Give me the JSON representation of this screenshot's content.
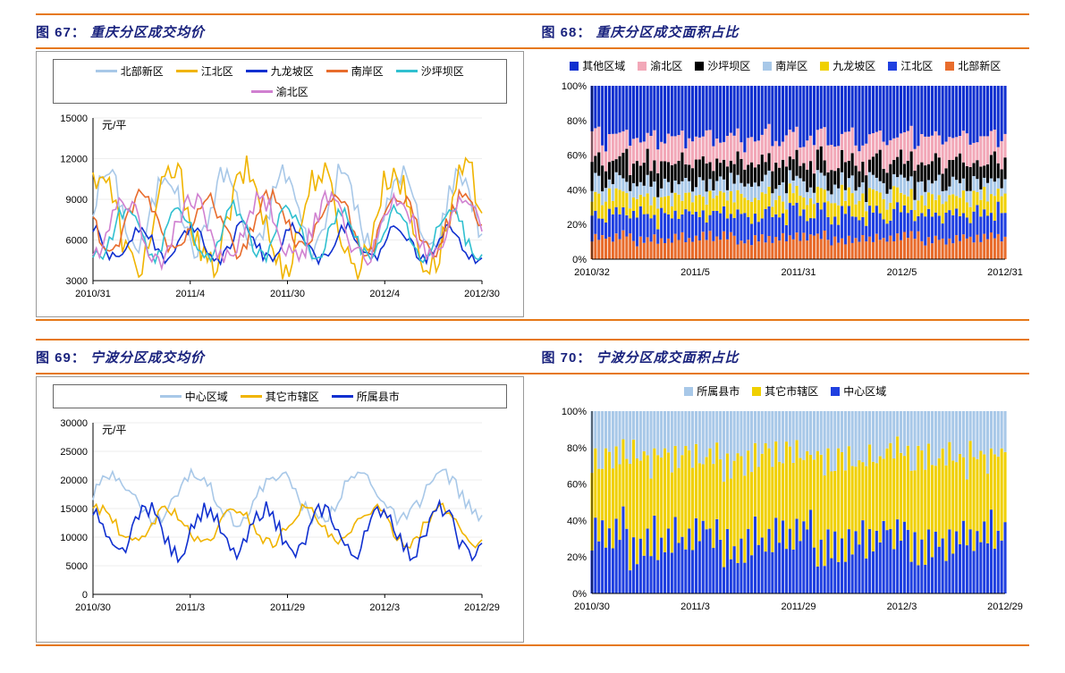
{
  "colors": {
    "orange_rule": "#e67817",
    "title": "#1a237e",
    "axis": "#000000",
    "grid": "#dddddd",
    "series": {
      "beibu": "#a8c8e8",
      "jiangbei": "#f0b400",
      "jiulongpo": "#1030d0",
      "nanan": "#e86c2c",
      "shapingba": "#30c0d0",
      "yubei": "#d080d0",
      "qita": "#1030d0",
      "yubei2": "#f2a8b8",
      "shapingba2": "#000000",
      "nanan2": "#a8c8e8",
      "jiulongpo2": "#f0d000",
      "jiangbei2": "#2040e0",
      "beibu2": "#e86c2c",
      "center": "#a8c8e8",
      "other_city": "#f0b400",
      "county": "#1030d0",
      "county2": "#a8c8e8",
      "other_city2": "#f0d000",
      "center2": "#2040e0"
    }
  },
  "fig67": {
    "num": "图 67：",
    "txt": "重庆分区成交均价",
    "ylabel": "元/平",
    "ylim": [
      3000,
      15000
    ],
    "yticks": [
      3000,
      6000,
      9000,
      12000,
      15000
    ],
    "xticks": [
      "2010/31",
      "2011/4",
      "2011/30",
      "2012/4",
      "2012/30"
    ],
    "legend": [
      {
        "name": "北部新区",
        "key": "beibu"
      },
      {
        "name": "江北区",
        "key": "jiangbei"
      },
      {
        "name": "九龙坡区",
        "key": "jiulongpo"
      },
      {
        "name": "南岸区",
        "key": "nanan"
      },
      {
        "name": "沙坪坝区",
        "key": "shapingba"
      },
      {
        "name": "渝北区",
        "key": "yubei"
      }
    ],
    "n": 120,
    "series": {
      "beibu": {
        "base": 8200,
        "amp": 2800,
        "freq": 0.35,
        "jitter": 1800
      },
      "jiangbei": {
        "base": 7500,
        "amp": 3500,
        "freq": 0.28,
        "jitter": 2500
      },
      "jiulongpo": {
        "base": 5800,
        "amp": 1200,
        "freq": 0.4,
        "jitter": 900
      },
      "nanan": {
        "base": 7200,
        "amp": 2000,
        "freq": 0.32,
        "jitter": 1400
      },
      "shapingba": {
        "base": 6500,
        "amp": 1800,
        "freq": 0.38,
        "jitter": 1200
      },
      "yubei": {
        "base": 6800,
        "amp": 2200,
        "freq": 0.3,
        "jitter": 1600
      }
    }
  },
  "fig68": {
    "num": "图 68：",
    "txt": "重庆分区成交面积占比",
    "ylim": [
      0,
      100
    ],
    "yticks": [
      0,
      20,
      40,
      60,
      80,
      100
    ],
    "ytick_suffix": "%",
    "xticks": [
      "2010/32",
      "2011/5",
      "2011/31",
      "2012/5",
      "2012/31"
    ],
    "legend": [
      {
        "name": "其他区域",
        "key": "qita"
      },
      {
        "name": "渝北区",
        "key": "yubei2"
      },
      {
        "name": "沙坪坝区",
        "key": "shapingba2"
      },
      {
        "name": "南岸区",
        "key": "nanan2"
      },
      {
        "name": "九龙坡区",
        "key": "jiulongpo2"
      },
      {
        "name": "江北区",
        "key": "jiangbei2"
      },
      {
        "name": "北部新区",
        "key": "beibu2"
      }
    ],
    "n": 120,
    "stack_order": [
      "beibu2",
      "jiangbei2",
      "jiulongpo2",
      "nanan2",
      "shapingba2",
      "yubei2",
      "qita"
    ],
    "shares": {
      "beibu2": {
        "base": 12,
        "amp": 4
      },
      "jiangbei2": {
        "base": 14,
        "amp": 6
      },
      "jiulongpo2": {
        "base": 10,
        "amp": 4
      },
      "nanan2": {
        "base": 8,
        "amp": 3
      },
      "shapingba2": {
        "base": 12,
        "amp": 5
      },
      "yubei2": {
        "base": 14,
        "amp": 5
      },
      "qita": {
        "base": 30,
        "amp": 8
      }
    }
  },
  "fig69": {
    "num": "图 69：",
    "txt": "宁波分区成交均价",
    "ylabel": "元/平",
    "ylim": [
      0,
      30000
    ],
    "yticks": [
      0,
      5000,
      10000,
      15000,
      20000,
      25000,
      30000
    ],
    "xticks": [
      "2010/30",
      "2011/3",
      "2011/29",
      "2012/3",
      "2012/29"
    ],
    "legend": [
      {
        "name": "中心区域",
        "key": "center"
      },
      {
        "name": "其它市辖区",
        "key": "other_city"
      },
      {
        "name": "所属县市",
        "key": "county"
      }
    ],
    "n": 120,
    "series": {
      "center": {
        "base": 17000,
        "amp": 4000,
        "freq": 0.25,
        "jitter": 2500
      },
      "other_city": {
        "base": 12000,
        "amp": 3000,
        "freq": 0.3,
        "jitter": 2000
      },
      "county": {
        "base": 11000,
        "amp": 4000,
        "freq": 0.35,
        "jitter": 3000
      }
    }
  },
  "fig70": {
    "num": "图 70：",
    "txt": "宁波分区成交面积占比",
    "ylim": [
      0,
      100
    ],
    "yticks": [
      0,
      20,
      40,
      60,
      80,
      100
    ],
    "ytick_suffix": "%",
    "xticks": [
      "2010/30",
      "2011/3",
      "2011/29",
      "2012/3",
      "2012/29"
    ],
    "legend": [
      {
        "name": "所属县市",
        "key": "county2"
      },
      {
        "name": "其它市辖区",
        "key": "other_city2"
      },
      {
        "name": "中心区域",
        "key": "center2"
      }
    ],
    "n": 120,
    "stack_order": [
      "center2",
      "other_city2",
      "county2"
    ],
    "shares": {
      "center2": {
        "base": 30,
        "amp": 18
      },
      "other_city2": {
        "base": 45,
        "amp": 15
      },
      "county2": {
        "base": 25,
        "amp": 10
      }
    }
  }
}
